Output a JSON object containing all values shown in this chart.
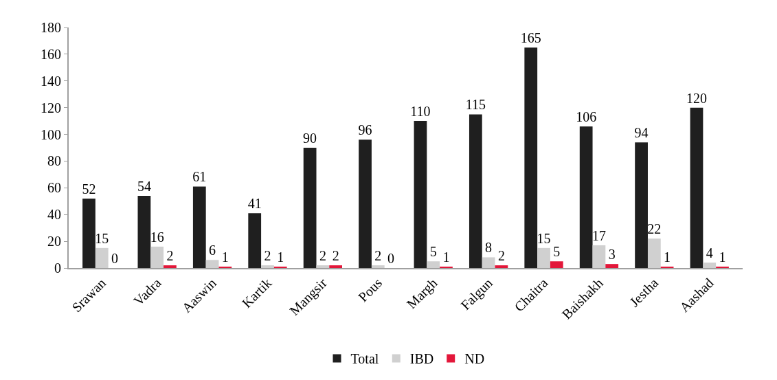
{
  "chart_data": {
    "type": "bar",
    "categories": [
      "Srawan",
      "Vadra",
      "Aaswin",
      "Kartik",
      "Mangsir",
      "Pous",
      "Margh",
      "Falgun",
      "Chaitra",
      "Baishakh",
      "Jestha",
      "Aashad"
    ],
    "series": [
      {
        "name": "Total",
        "color": "#1f1f1f",
        "values": [
          52,
          54,
          61,
          41,
          90,
          96,
          110,
          115,
          165,
          106,
          94,
          120
        ]
      },
      {
        "name": "IBD",
        "color": "#d0d0d0",
        "values": [
          15,
          16,
          6,
          2,
          2,
          2,
          5,
          8,
          15,
          17,
          22,
          4
        ]
      },
      {
        "name": "ND",
        "color": "#e3173a",
        "values": [
          0,
          2,
          1,
          1,
          2,
          0,
          1,
          2,
          5,
          3,
          1,
          1
        ]
      }
    ],
    "ylim": [
      0,
      180
    ],
    "yticks": [
      0,
      20,
      40,
      60,
      80,
      100,
      120,
      140,
      160,
      180
    ],
    "legend": "bottom",
    "data_labels": true
  }
}
